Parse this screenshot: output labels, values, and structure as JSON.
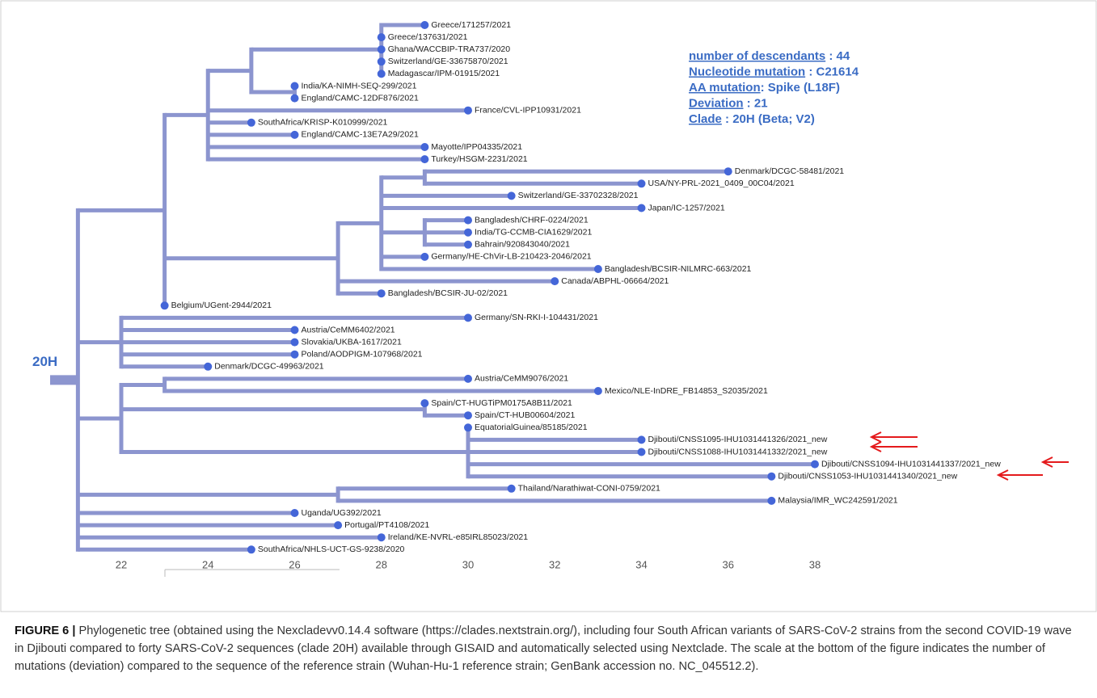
{
  "figure": {
    "clade_label": "20H",
    "info": [
      {
        "key": "number of descendants",
        "value": " : 44"
      },
      {
        "key": "Nucleotide mutation",
        "value": " : C21614"
      },
      {
        "key": "AA mutation",
        "value": ": Spike (L18F)"
      },
      {
        "key": "Deviation",
        "value": " : 21"
      },
      {
        "key": "Clade",
        "value": " : 20H (Beta; V2)"
      }
    ],
    "xticks": [
      22,
      24,
      26,
      28,
      30,
      32,
      34,
      36,
      38
    ],
    "tree": {
      "x": 21,
      "children": [
        {
          "x": 23,
          "children": [
            {
              "x": 24,
              "children": [
                {
                  "x": 25,
                  "children": [
                    {
                      "x": 28,
                      "children": [
                        {
                          "label": "Greece/171257/2021",
                          "x": 29
                        },
                        {
                          "label": "Greece/137631/2021",
                          "x": 28
                        },
                        {
                          "label": "Ghana/WACCBIP-TRA737/2020",
                          "x": 28
                        },
                        {
                          "label": "Switzerland/GE-33675870/2021",
                          "x": 28
                        },
                        {
                          "label": "Madagascar/IPM-01915/2021",
                          "x": 28
                        }
                      ]
                    },
                    {
                      "x": 26,
                      "children": [
                        {
                          "label": "India/KA-NIMH-SEQ-299/2021",
                          "x": 26
                        },
                        {
                          "label": "England/CAMC-12DF876/2021",
                          "x": 26
                        }
                      ]
                    }
                  ]
                },
                {
                  "label": "France/CVL-IPP10931/2021",
                  "x": 30
                },
                {
                  "label": "SouthAfrica/KRISP-K010999/2021",
                  "x": 25
                },
                {
                  "label": "England/CAMC-13E7A29/2021",
                  "x": 26
                },
                {
                  "label": "Mayotte/IPP04335/2021",
                  "x": 29
                },
                {
                  "label": "Turkey/HSGM-2231/2021",
                  "x": 29
                }
              ]
            },
            {
              "x": 27,
              "children": [
                {
                  "x": 28,
                  "children": [
                    {
                      "x": 29,
                      "children": [
                        {
                          "label": "Denmark/DCGC-58481/2021",
                          "x": 36
                        },
                        {
                          "label": "USA/NY-PRL-2021_0409_00C04/2021",
                          "x": 34
                        }
                      ]
                    },
                    {
                      "label": "Switzerland/GE-33702328/2021",
                      "x": 31
                    },
                    {
                      "label": "Japan/IC-1257/2021",
                      "x": 34
                    },
                    {
                      "x": 29,
                      "children": [
                        {
                          "label": "Bangladesh/CHRF-0224/2021",
                          "x": 30
                        },
                        {
                          "label": "India/TG-CCMB-CIA1629/2021",
                          "x": 30
                        },
                        {
                          "label": "Bahrain/920843040/2021",
                          "x": 30
                        }
                      ]
                    },
                    {
                      "label": "Germany/HE-ChVir-LB-210423-2046/2021",
                      "x": 29
                    },
                    {
                      "label": "Bangladesh/BCSIR-NILMRC-663/2021",
                      "x": 33
                    }
                  ]
                },
                {
                  "label": "Canada/ABPHL-06664/2021",
                  "x": 32
                },
                {
                  "label": "Bangladesh/BCSIR-JU-02/2021",
                  "x": 28
                }
              ]
            },
            {
              "label": "Belgium/UGent-2944/2021",
              "x": 23
            }
          ]
        },
        {
          "x": 22,
          "children": [
            {
              "label": "Germany/SN-RKI-I-104431/2021",
              "x": 30
            },
            {
              "label": "Austria/CeMM6402/2021",
              "x": 26
            },
            {
              "label": "Slovakia/UKBA-1617/2021",
              "x": 26
            },
            {
              "label": "Poland/AODPIGM-107968/2021",
              "x": 26
            },
            {
              "label": "Denmark/DCGC-49963/2021",
              "x": 24
            }
          ]
        },
        {
          "x": 22,
          "children": [
            {
              "x": 23,
              "children": [
                {
                  "label": "Austria/CeMM9076/2021",
                  "x": 30
                },
                {
                  "label": "Mexico/NLE-InDRE_FB14853_S2035/2021",
                  "x": 33
                }
              ]
            },
            {
              "x": 29,
              "children": [
                {
                  "label": "Spain/CT-HUGTiPM0175A8B11/2021",
                  "x": 29
                },
                {
                  "label": "Spain/CT-HUB00604/2021",
                  "x": 30
                }
              ]
            },
            {
              "x": 30,
              "children": [
                {
                  "label": "EquatorialGuinea/85185/2021",
                  "x": 30
                },
                {
                  "label": "Djibouti/CNSS1095-IHU1031441326/2021_new",
                  "x": 34
                },
                {
                  "label": "Djibouti/CNSS1088-IHU1031441332/2021_new",
                  "x": 34
                },
                {
                  "label": "Djibouti/CNSS1094-IHU1031441337/2021_new",
                  "x": 38
                },
                {
                  "label": "Djibouti/CNSS1053-IHU1031441340/2021_new",
                  "x": 37
                }
              ]
            }
          ]
        },
        {
          "x": 27,
          "children": [
            {
              "label": "Thailand/Narathiwat-CONI-0759/2021",
              "x": 31
            },
            {
              "label": "Malaysia/IMR_WC242591/2021",
              "x": 37
            }
          ]
        },
        {
          "label": "Uganda/UG392/2021",
          "x": 26
        },
        {
          "label": "Portugal/PT4108/2021",
          "x": 27
        },
        {
          "label": "Ireland/KE-NVRL-e85IRL85023/2021",
          "x": 28
        },
        {
          "label": "SouthAfrica/NHLS-UCT-GS-9238/2020",
          "x": 25
        }
      ]
    },
    "caption": {
      "label": "FIGURE 6 |",
      "text": " Phylogenetic tree (obtained using the Nexcladevv0.14.4 software (https://clades.nextstrain.org/), including four South African variants of SARS-CoV-2 strains from the second COVID-19 wave in Djibouti compared to forty SARS-CoV-2 sequences (clade 20H) available through GISAID and automatically selected using Nextclade. The scale at the bottom of the figure indicates the number of mutations (deviation) compared to the sequence of the reference strain (Wuhan-Hu-1 reference strain; GenBank accession no. NC_045512.2)."
    }
  }
}
